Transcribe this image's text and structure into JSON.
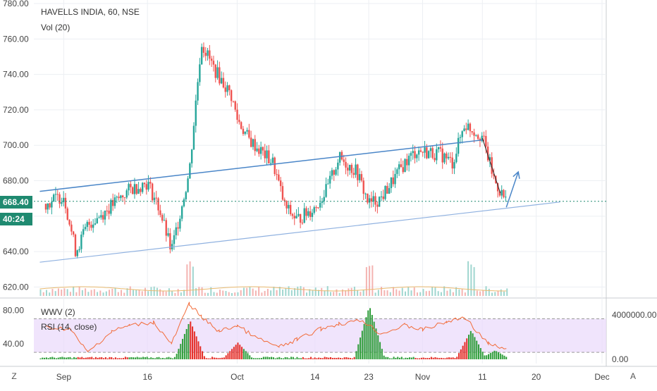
{
  "header": {
    "symbol_line": "HAVELLS INDIA, 60, NSE",
    "volume_label": "Vol (20)",
    "lower_label_1": "WWV (2)",
    "lower_label_2": "RSI (14, close)"
  },
  "badges": {
    "last_price": "668.40",
    "countdown": "40:24"
  },
  "buttons": {
    "left_corner": "Z",
    "right_corner": "A"
  },
  "colors": {
    "up": "#26a69a",
    "down": "#ef5350",
    "trendline": "#4a86c8",
    "lower_trendline": "#8fb1e0",
    "price_line": "#1f8a70",
    "rsi": "#f26b38",
    "rsi_band": "#ead9fb",
    "wwv_up": "#2e9d3a",
    "wwv_down": "#e52d27",
    "grid": "#eceff3",
    "axis_text": "#444444"
  },
  "chart_data": [
    {
      "type": "line",
      "title": "HAVELLS INDIA, 60, NSE",
      "x_tick_labels": [
        "Sep",
        "16",
        "Oct",
        "14",
        "23",
        "Nov",
        "11",
        "20",
        "Dec"
      ],
      "y_tick_labels": [
        "620.00",
        "640.00",
        "660.00",
        "680.00",
        "700.00",
        "720.00",
        "740.00",
        "760.00",
        "780.00"
      ],
      "ylim": [
        615,
        782
      ],
      "last_price": 668.4,
      "close_path": {
        "x": [
          "Aug 30",
          "Sep 2",
          "Sep 4",
          "Sep 6",
          "Sep 9",
          "Sep 11",
          "Sep 13",
          "Sep 16",
          "Sep 18",
          "Sep 20",
          "Sep 23",
          "Sep 25",
          "Sep 27",
          "Sep 30",
          "Oct 1",
          "Oct 3",
          "Oct 7",
          "Oct 9",
          "Oct 11",
          "Oct 14",
          "Oct 16",
          "Oct 18",
          "Oct 21",
          "Oct 23",
          "Oct 25",
          "Oct 29",
          "Oct 31",
          "Nov 4",
          "Nov 6",
          "Nov 8",
          "Nov 11",
          "Nov 13",
          "Nov 15"
        ],
        "y": [
          667,
          672,
          640,
          655,
          663,
          669,
          675,
          679,
          664,
          640,
          685,
          758,
          744,
          728,
          715,
          703,
          690,
          665,
          658,
          665,
          675,
          693,
          685,
          667,
          670,
          690,
          697,
          695,
          690,
          712,
          705,
          680,
          668
        ]
      },
      "trendlines": [
        {
          "name": "upper",
          "x": [
            "Aug 29",
            "Nov 11"
          ],
          "y": [
            674,
            703
          ]
        },
        {
          "name": "lower",
          "x": [
            "Aug 29",
            "Nov 24"
          ],
          "y": [
            634,
            668
          ]
        },
        {
          "name": "drop",
          "x": [
            "Nov 11",
            "Nov 14"
          ],
          "y": [
            704,
            673
          ]
        },
        {
          "name": "projection-arrow",
          "x": [
            "Nov 15",
            "Nov 17"
          ],
          "y": [
            665,
            685
          ]
        }
      ],
      "volume": {
        "label": "Vol (20)",
        "spike_dates": [
          "Sep 23",
          "Oct 23",
          "Nov 9"
        ]
      }
    },
    {
      "type": "line",
      "series": [
        {
          "name": "WWV (2)",
          "kind": "bar"
        },
        {
          "name": "RSI (14, close)",
          "kind": "line"
        }
      ],
      "y_tick_labels": [
        "40.00",
        "80.00"
      ],
      "right_tick_labels": [
        "0.00",
        "4000000.00"
      ],
      "rsi_band": [
        30,
        70
      ],
      "rsi": {
        "x": [
          "Aug 30",
          "Sep 3",
          "Sep 6",
          "Sep 10",
          "Sep 13",
          "Sep 17",
          "Sep 20",
          "Sep 23",
          "Sep 25",
          "Sep 28",
          "Oct 1",
          "Oct 4",
          "Oct 8",
          "Oct 11",
          "Oct 15",
          "Oct 18",
          "Oct 22",
          "Oct 25",
          "Oct 29",
          "Nov 1",
          "Nov 5",
          "Nov 8",
          "Nov 12",
          "Nov 15"
        ],
        "y": [
          60,
          58,
          30,
          55,
          62,
          66,
          40,
          88,
          72,
          55,
          62,
          48,
          36,
          45,
          58,
          64,
          68,
          52,
          62,
          57,
          66,
          72,
          40,
          33
        ]
      },
      "wwv": {
        "x": [
          "Sep 23",
          "Oct 1",
          "Oct 23",
          "Nov 9",
          "Nov 13"
        ],
        "y": [
          3500000,
          1500000,
          4800000,
          2600000,
          800000
        ]
      }
    }
  ]
}
